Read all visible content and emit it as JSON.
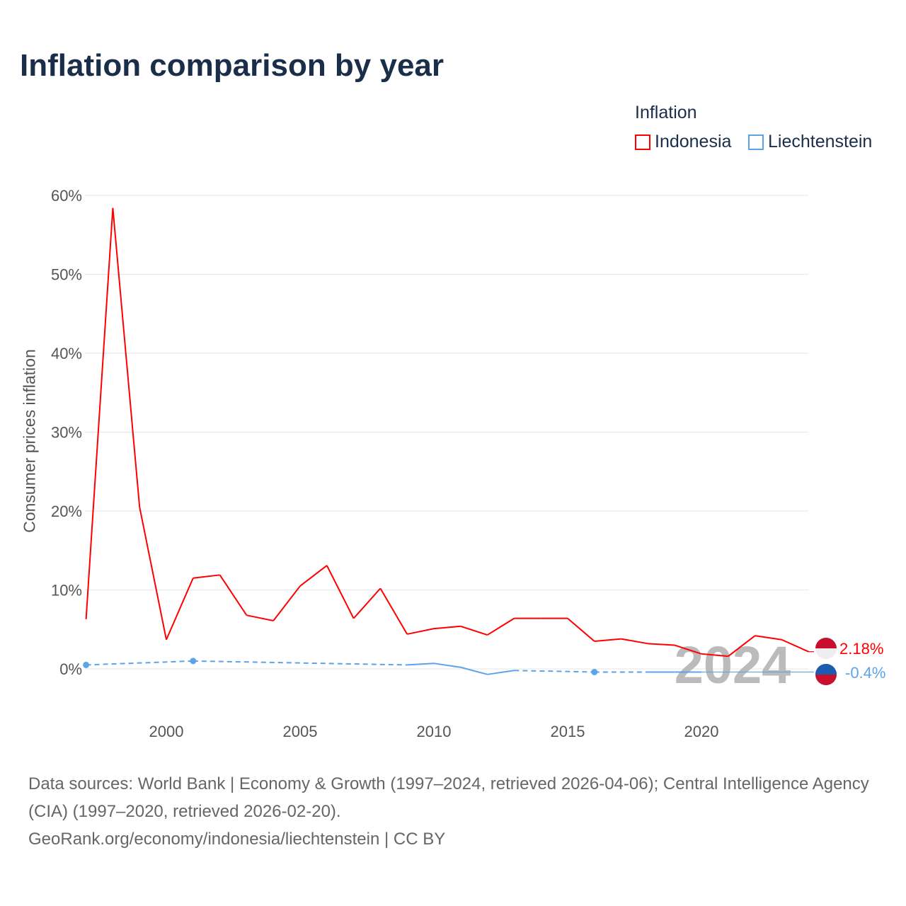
{
  "title": "Inflation comparison by year",
  "legend": {
    "title": "Inflation",
    "items": [
      {
        "name": "Indonesia",
        "color": "#ff0000"
      },
      {
        "name": "Liechtenstein",
        "color": "#5ba4ea"
      }
    ]
  },
  "watermark_year": "2024",
  "end_labels": {
    "Indonesia": "2.18%",
    "Liechtenstein": "-0.4%"
  },
  "sources": {
    "line1": "Data sources: World Bank | Economy & Growth (1997–2024, retrieved 2026-04-06); Central Intelligence Agency (CIA) (1997–2020, retrieved 2026-02-20).",
    "line2": "GeoRank.org/economy/indonesia/liechtenstein | CC BY"
  },
  "chart_data": {
    "type": "line",
    "title": "Inflation comparison by year",
    "xlabel": "",
    "ylabel": "Consumer prices inflation",
    "xlim": [
      1997,
      2024
    ],
    "ylim": [
      -5,
      60
    ],
    "xticks": [
      2000,
      2005,
      2010,
      2015,
      2020
    ],
    "yticks": [
      0,
      10,
      20,
      30,
      40,
      50,
      60
    ],
    "ytick_labels": [
      "0%",
      "10%",
      "20%",
      "30%",
      "40%",
      "50%",
      "60%"
    ],
    "grid": true,
    "legend_position": "top-right",
    "series": [
      {
        "name": "Indonesia",
        "color": "#ff0000",
        "points": [
          [
            1997,
            6.3
          ],
          [
            1998,
            58.4
          ],
          [
            1999,
            20.5
          ],
          [
            2000,
            3.7
          ],
          [
            2001,
            11.5
          ],
          [
            2002,
            11.9
          ],
          [
            2003,
            6.8
          ],
          [
            2004,
            6.1
          ],
          [
            2005,
            10.5
          ],
          [
            2006,
            13.1
          ],
          [
            2007,
            6.4
          ],
          [
            2008,
            10.2
          ],
          [
            2009,
            4.4
          ],
          [
            2010,
            5.1
          ],
          [
            2011,
            5.4
          ],
          [
            2012,
            4.3
          ],
          [
            2013,
            6.4
          ],
          [
            2014,
            6.4
          ],
          [
            2015,
            6.4
          ],
          [
            2016,
            3.5
          ],
          [
            2017,
            3.8
          ],
          [
            2018,
            3.2
          ],
          [
            2019,
            3.0
          ],
          [
            2020,
            1.9
          ],
          [
            2021,
            1.6
          ],
          [
            2022,
            4.2
          ],
          [
            2023,
            3.7
          ],
          [
            2024,
            2.18
          ]
        ]
      },
      {
        "name": "Liechtenstein",
        "color": "#5ba4ea",
        "points": [
          [
            1997,
            0.5
          ],
          [
            2001,
            1.0
          ],
          [
            2009,
            0.5
          ],
          [
            2010,
            0.7
          ],
          [
            2011,
            0.2
          ],
          [
            2012,
            -0.7
          ],
          [
            2013,
            -0.2
          ],
          [
            2016,
            -0.4
          ],
          [
            2018,
            -0.4
          ],
          [
            2019,
            -0.4
          ],
          [
            2020,
            -0.4
          ]
        ],
        "latest": -0.4
      }
    ]
  }
}
